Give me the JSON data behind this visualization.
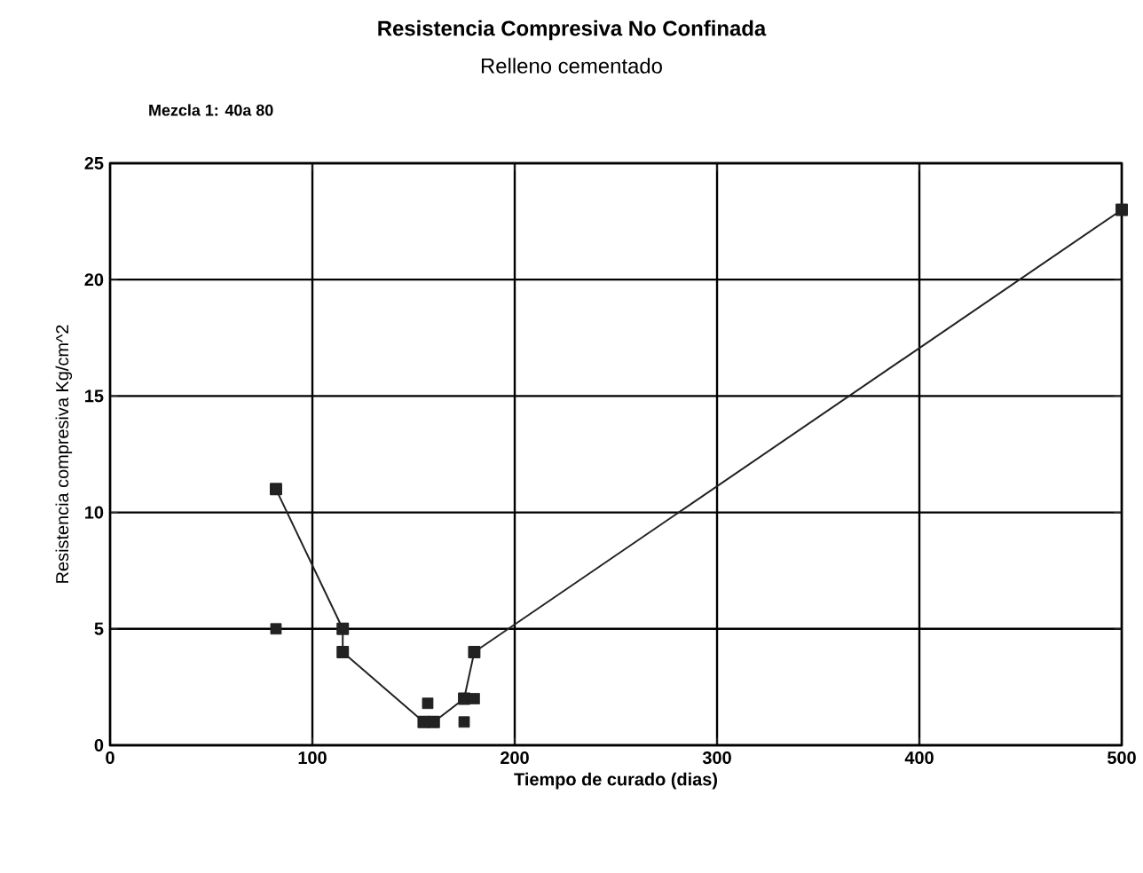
{
  "chart_data": {
    "type": "line",
    "title": "Resistencia Compresiva No Confinada",
    "subtitle": "Relleno cementado",
    "xlabel": "Tiempo de curado (dias)",
    "ylabel": "Resistencia compresiva Kg/cm^2",
    "annotations": [
      "Mezcla 1: 40a 80"
    ],
    "series": [
      {
        "color": "#222222",
        "x": [
          82,
          115,
          115,
          155,
          160,
          175,
          180,
          500
        ],
        "values": [
          11,
          5,
          4,
          1,
          1,
          2,
          4,
          23
        ]
      },
      {
        "type": "scatter",
        "color": "#222222",
        "x": [
          82,
          157,
          175,
          180
        ],
        "values": [
          5,
          1.8,
          1,
          2
        ]
      }
    ],
    "marker": "square",
    "grid": true,
    "xlim": [
      0,
      500
    ],
    "ylim": [
      0,
      25
    ],
    "xticks": [
      0,
      100,
      200,
      300,
      400,
      500
    ],
    "yticks": [
      0,
      5,
      10,
      15,
      20,
      25
    ]
  }
}
